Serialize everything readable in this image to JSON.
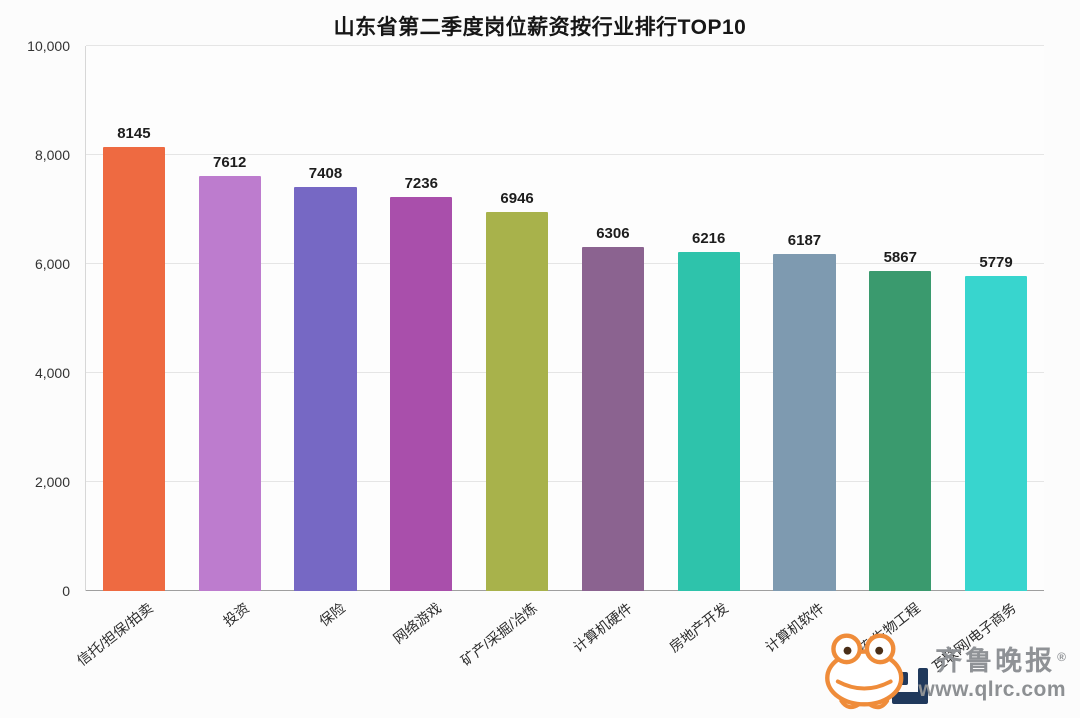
{
  "title": "山东省第二季度岗位薪资按行业排行TOP10",
  "chart_data": {
    "type": "bar",
    "title": "山东省第二季度岗位薪资按行业排行TOP10",
    "categories": [
      "信托/担保/拍卖",
      "投资",
      "保险",
      "网络游戏",
      "矿产/采掘/冶炼",
      "计算机硬件",
      "房地产开发",
      "计算机软件",
      "制药/生物工程",
      "互联网/电子商务"
    ],
    "values": [
      8145,
      7612,
      7408,
      7236,
      6946,
      6306,
      6216,
      6187,
      5867,
      5779
    ],
    "value_labels": [
      "8145",
      "7612",
      "7408",
      "7236",
      "6946",
      "6306",
      "6216",
      "6187",
      "5867",
      "5779"
    ],
    "bar_colors": [
      "#ee6a41",
      "#bd7cce",
      "#7668c4",
      "#a94fab",
      "#a8b24b",
      "#8b6390",
      "#2ec3ab",
      "#7e9ab0",
      "#3a9a6e",
      "#38d5ce"
    ],
    "xlabel": "",
    "ylabel": "",
    "ylim": [
      0,
      10000
    ],
    "ytick_values": [
      0,
      2000,
      4000,
      6000,
      8000,
      10000
    ],
    "ytick_labels": [
      "0",
      "2,000",
      "4,000",
      "6,000",
      "8,000",
      "10,000"
    ],
    "grid": true,
    "legend": "none"
  },
  "watermark": {
    "brand": "齐鲁晚报",
    "registered_mark": "®",
    "url": "www.qlrc.com",
    "icons": {
      "frog_logo": "frog-mascot-line-art",
      "obscured_blocks": "partially-hidden-logo-glyphs"
    },
    "colors": {
      "frog": "#ef8c3a",
      "text": "#8f9296",
      "obscured_blocks": "#20395c"
    }
  }
}
